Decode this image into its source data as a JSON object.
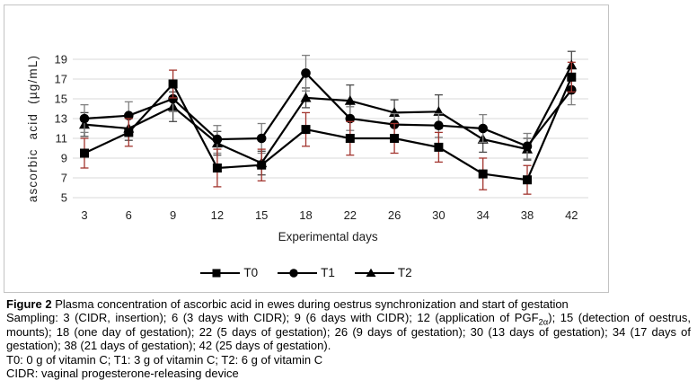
{
  "figure_caption": {
    "label": "Figure 2",
    "title": "Plasma concentration of ascorbic acid in ewes during oestrus synchronization and start of gestation",
    "sampling_pre": "Sampling: 3 (CIDR, insertion); 6 (3 days with CIDR); 9 (6 days with CIDR); 12 (application of PGF",
    "sampling_sub": "2α",
    "sampling_post": "); 15 (detection of oestrus, mounts); 18 (one day of gestation); 22 (5 days of gestation); 26 (9 days of gestation); 30 (13 days of gestation); 34 (17 days of gestation); 38 (21 days of gestation); 42 (25 days of gestation).",
    "treatments": "T0: 0 g of vitamin C; T1: 3 g of vitamin C; T2: 6 g of vitamin C",
    "cidr": "CIDR: vaginal progesterone-releasing device"
  },
  "chart_data": {
    "type": "line",
    "x": [
      3,
      6,
      9,
      12,
      15,
      18,
      22,
      26,
      30,
      34,
      38,
      42
    ],
    "xlabel": "Experimental days",
    "ylabel": "ascorbic acid (µg/mL)",
    "ylim": [
      5,
      19
    ],
    "yticks": [
      5,
      7,
      9,
      11,
      13,
      15,
      17,
      19
    ],
    "grid": true,
    "legend_position": "bottom-center",
    "gridline_color": "#d9d9d9",
    "line_color": "#000000",
    "marker_color": "#000000",
    "series": [
      {
        "name": "T0",
        "marker": "square",
        "error_color": "#a2342e",
        "values": [
          9.5,
          11.6,
          16.5,
          8.0,
          8.3,
          11.9,
          11.0,
          11.0,
          10.1,
          7.4,
          6.8,
          17.2
        ],
        "errors": [
          1.5,
          1.4,
          1.4,
          1.9,
          1.6,
          1.7,
          1.7,
          1.5,
          1.5,
          1.6,
          1.45,
          1.5
        ]
      },
      {
        "name": "T1",
        "marker": "circle",
        "error_color": "#7f7f7f",
        "values": [
          13.0,
          13.3,
          15.0,
          10.9,
          11.0,
          17.6,
          13.0,
          12.4,
          12.3,
          12.0,
          10.2,
          15.9
        ],
        "errors": [
          1.4,
          1.4,
          1.3,
          1.4,
          1.5,
          1.8,
          1.2,
          1.1,
          1.2,
          1.4,
          1.3,
          1.5
        ]
      },
      {
        "name": "T2",
        "marker": "triangle",
        "error_color": "#4a4a4a",
        "values": [
          12.4,
          12.0,
          14.2,
          10.5,
          8.5,
          15.1,
          14.8,
          13.6,
          13.7,
          10.9,
          9.9,
          18.4
        ],
        "errors": [
          1.2,
          1.2,
          1.5,
          1.2,
          1.2,
          1.0,
          1.6,
          1.3,
          1.7,
          1.3,
          1.1,
          1.4
        ]
      }
    ]
  }
}
